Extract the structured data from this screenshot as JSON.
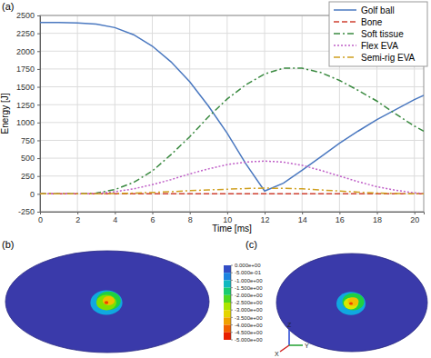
{
  "chart_data": [
    {
      "type": "line",
      "panel_label": "(a)",
      "x_label": "Time [ms]",
      "y_label": "Energy [J]",
      "x": [
        0,
        1,
        2,
        3,
        4,
        5,
        6,
        7,
        8,
        9,
        10,
        11,
        12,
        13,
        14,
        15,
        16,
        17,
        18,
        19,
        20,
        20.5
      ],
      "xlim": [
        0,
        20.5
      ],
      "xticks": [
        0,
        2,
        4,
        6,
        8,
        10,
        12,
        14,
        16,
        18,
        20
      ],
      "ylim": [
        -250,
        2500
      ],
      "yticks": [
        -250,
        0,
        250,
        500,
        750,
        1000,
        1250,
        1500,
        1750,
        2000,
        2250,
        2500
      ],
      "grid": true,
      "legend": "upper right",
      "series": [
        {
          "name": "Golf ball",
          "color": "#4a78c0",
          "line_style": "solid",
          "values": [
            2400,
            2400,
            2395,
            2380,
            2330,
            2230,
            2070,
            1850,
            1570,
            1230,
            850,
            420,
            40,
            150,
            330,
            520,
            710,
            880,
            1040,
            1180,
            1320,
            1380
          ]
        },
        {
          "name": "Bone",
          "color": "#d04030",
          "line_style": "dashed",
          "values": [
            0,
            0,
            0,
            0,
            0,
            0,
            0,
            0,
            0,
            0,
            0,
            0,
            0,
            0,
            0,
            0,
            0,
            0,
            0,
            0,
            0,
            0
          ]
        },
        {
          "name": "Soft tissue",
          "color": "#3a8a40",
          "line_style": "dashdot",
          "values": [
            0,
            0,
            0,
            10,
            60,
            160,
            320,
            550,
            800,
            1080,
            1330,
            1530,
            1680,
            1760,
            1760,
            1700,
            1590,
            1450,
            1300,
            1120,
            950,
            880
          ]
        },
        {
          "name": "Flex EVA",
          "color": "#c060c8",
          "line_style": "dotted",
          "values": [
            0,
            0,
            0,
            5,
            30,
            70,
            130,
            200,
            280,
            350,
            410,
            445,
            460,
            445,
            400,
            330,
            250,
            170,
            100,
            50,
            15,
            5
          ]
        },
        {
          "name": "Semi-rig EVA",
          "color": "#d0a020",
          "line_style": "dashdot",
          "values": [
            0,
            0,
            0,
            0,
            5,
            10,
            20,
            30,
            45,
            55,
            65,
            75,
            80,
            78,
            70,
            55,
            40,
            25,
            12,
            5,
            0,
            0
          ]
        }
      ]
    },
    {
      "type": "contour",
      "panel_label": "(b)",
      "background": 0,
      "levels": [
        -1,
        -2,
        -2.5,
        -3.5,
        -4.5
      ]
    },
    {
      "type": "contour",
      "panel_label": "(c)",
      "background": 0,
      "levels": [
        -1,
        -2,
        -3,
        -3.5,
        -4.5
      ]
    }
  ],
  "colorbar": {
    "range": [
      -5,
      0
    ],
    "ticks": [
      {
        "value": 0,
        "label": "0.000e+00"
      },
      {
        "value": -0.5,
        "label": "-5.000e-01"
      },
      {
        "value": -1,
        "label": "-1.000e+00"
      },
      {
        "value": -1.5,
        "label": "-1.500e+00"
      },
      {
        "value": -2,
        "label": "-2.000e+00"
      },
      {
        "value": -2.5,
        "label": "-2.500e+00"
      },
      {
        "value": -3,
        "label": "-3.000e+00"
      },
      {
        "value": -3.5,
        "label": "-3.500e+00"
      },
      {
        "value": -4,
        "label": "-4.000e+00"
      },
      {
        "value": -4.5,
        "label": "-4.500e+00"
      },
      {
        "value": -5,
        "label": "-5.000e+00"
      }
    ]
  },
  "axis_triad": [
    "Z",
    "X",
    "Y"
  ]
}
